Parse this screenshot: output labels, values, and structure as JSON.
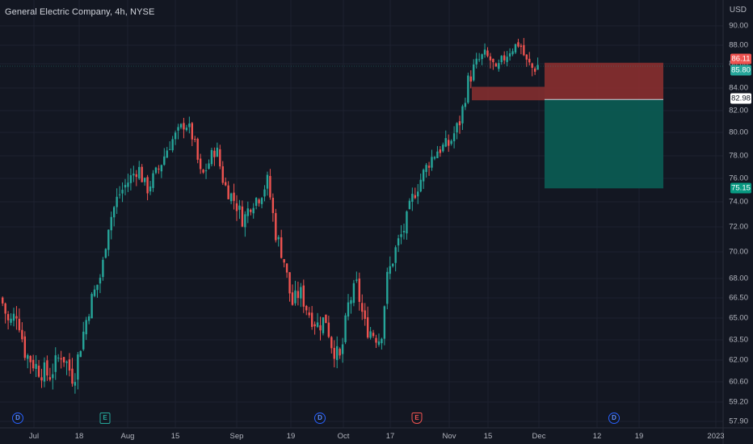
{
  "header": {
    "title": "General Electric Company, 4h, NYSE",
    "currency": "USD"
  },
  "colors": {
    "background": "#131722",
    "up": "#26a69a",
    "down": "#ef5350",
    "stop_zone": "#8a2f2f",
    "target_zone": "#0b5a52",
    "grid": "#1e2230"
  },
  "price_axis": {
    "ticks": [
      "90.00",
      "88.00",
      "86.00",
      "84.00",
      "82.00",
      "80.00",
      "78.00",
      "76.00",
      "74.00",
      "72.00",
      "70.00",
      "68.00",
      "66.50",
      "65.00",
      "63.50",
      "62.00",
      "60.60",
      "59.20",
      "57.90"
    ],
    "tags": [
      {
        "label": "86.11",
        "bg": "#ef5350",
        "fg": "#ffffff"
      },
      {
        "label": "85.80",
        "bg": "#26a69a",
        "fg": "#ffffff"
      },
      {
        "label": "82.98",
        "bg": "#ffffff",
        "fg": "#131722"
      },
      {
        "label": "75.15",
        "bg": "#089981",
        "fg": "#ffffff"
      }
    ]
  },
  "time_axis": {
    "ticks": [
      "Jul",
      "18",
      "Aug",
      "15",
      "Sep",
      "19",
      "Oct",
      "17",
      "Nov",
      "15",
      "Dec",
      "12",
      "19",
      "2023"
    ]
  },
  "events": [
    {
      "type": "dividend",
      "label": "D"
    },
    {
      "type": "earnings",
      "label": "E"
    },
    {
      "type": "dividend",
      "label": "D"
    },
    {
      "type": "earnings-red",
      "label": "E"
    },
    {
      "type": "dividend",
      "label": "D"
    }
  ],
  "chart_data": {
    "type": "candlestick",
    "ticker": "General Electric Company",
    "interval": "4h",
    "exchange": "NYSE",
    "series_close_path": [
      [
        "Jul",
        66.5
      ],
      [
        "Jul",
        64.0
      ],
      [
        "Jul",
        62.0
      ],
      [
        "Jul",
        60.8
      ],
      [
        "18",
        63.0
      ],
      [
        "18",
        66.0
      ],
      [
        "18",
        68.5
      ],
      [
        "Aug",
        72.0
      ],
      [
        "Aug",
        74.5
      ],
      [
        "Aug",
        76.0
      ],
      [
        "Aug",
        75.0
      ],
      [
        "15",
        77.0
      ],
      [
        "15",
        79.5
      ],
      [
        "15",
        80.5
      ],
      [
        "15",
        79.5
      ],
      [
        "Sep",
        78.0
      ],
      [
        "Sep",
        76.0
      ],
      [
        "Sep",
        77.5
      ],
      [
        "Sep",
        74.5
      ],
      [
        "Sep",
        73.0
      ],
      [
        "Sep",
        75.5
      ],
      [
        "Sep",
        72.5
      ],
      [
        "19",
        70.5
      ],
      [
        "19",
        67.0
      ],
      [
        "19",
        65.5
      ],
      [
        "19",
        64.5
      ],
      [
        "Oct",
        63.0
      ],
      [
        "Oct",
        64.5
      ],
      [
        "Oct",
        66.8
      ],
      [
        "Oct",
        64.5
      ],
      [
        "Oct",
        63.8
      ],
      [
        "17",
        69.0
      ],
      [
        "17",
        70.5
      ],
      [
        "17",
        72.5
      ],
      [
        "17",
        75.0
      ],
      [
        "Nov",
        77.5
      ],
      [
        "Nov",
        79.0
      ],
      [
        "Nov",
        80.5
      ],
      [
        "Nov",
        84.0
      ],
      [
        "Nov",
        86.0
      ],
      [
        "15",
        87.5
      ],
      [
        "15",
        85.5
      ],
      [
        "15",
        86.5
      ],
      [
        "15",
        88.2
      ],
      [
        "15",
        86.0
      ],
      [
        "Dec",
        85.8
      ]
    ],
    "position": {
      "type": "short",
      "entry": 82.98,
      "stop": 86.11,
      "target": 75.15,
      "current": 85.8
    },
    "ylim": [
      57.9,
      90.0
    ]
  }
}
